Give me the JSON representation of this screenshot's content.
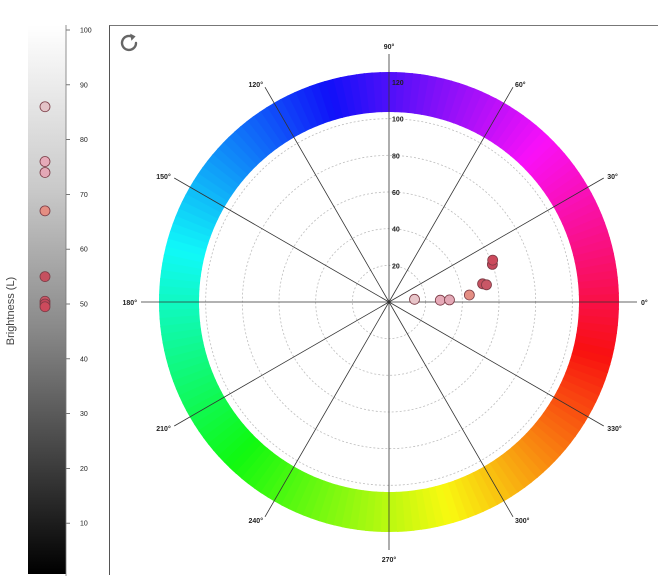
{
  "brightness_axis": {
    "label": "Brightness (L)",
    "ticks": [
      100,
      90,
      80,
      70,
      60,
      50,
      40,
      30,
      20,
      10
    ]
  },
  "chart_data": {
    "type": "scatter",
    "polar": {
      "angle_ticks": [
        "0°",
        "30°",
        "60°",
        "90°",
        "120°",
        "150°",
        "180°",
        "210°",
        "240°",
        "270°",
        "300°",
        "330°"
      ],
      "angle_values": [
        0,
        30,
        60,
        90,
        120,
        150,
        180,
        210,
        240,
        270,
        300,
        330
      ],
      "radial_ticks": [
        20,
        40,
        60,
        80,
        100,
        120
      ],
      "rmax": 120,
      "points": [
        {
          "r": 14,
          "theta": 6,
          "color": "#e8c5c9"
        },
        {
          "r": 28,
          "theta": 2,
          "color": "#e6aab8"
        },
        {
          "r": 33,
          "theta": 2,
          "color": "#e3a8b6"
        },
        {
          "r": 44,
          "theta": 5,
          "color": "#e48e83"
        },
        {
          "r": 52,
          "theta": 11,
          "color": "#c5505f"
        },
        {
          "r": 54,
          "theta": 10,
          "color": "#c95766"
        },
        {
          "r": 60,
          "theta": 20,
          "color": "#c4475b"
        },
        {
          "r": 61,
          "theta": 22,
          "color": "#cc4a5c"
        }
      ]
    },
    "brightness": [
      {
        "L": 86,
        "color": "#e3c3c7"
      },
      {
        "L": 76,
        "color": "#e6aab8"
      },
      {
        "L": 74,
        "color": "#e3a8b6"
      },
      {
        "L": 67,
        "color": "#e48e83"
      },
      {
        "L": 55,
        "color": "#c5505f"
      },
      {
        "L": 50.5,
        "color": "#c95766"
      },
      {
        "L": 50,
        "color": "#c4475b"
      },
      {
        "L": 49.5,
        "color": "#cc4a5c"
      }
    ]
  }
}
